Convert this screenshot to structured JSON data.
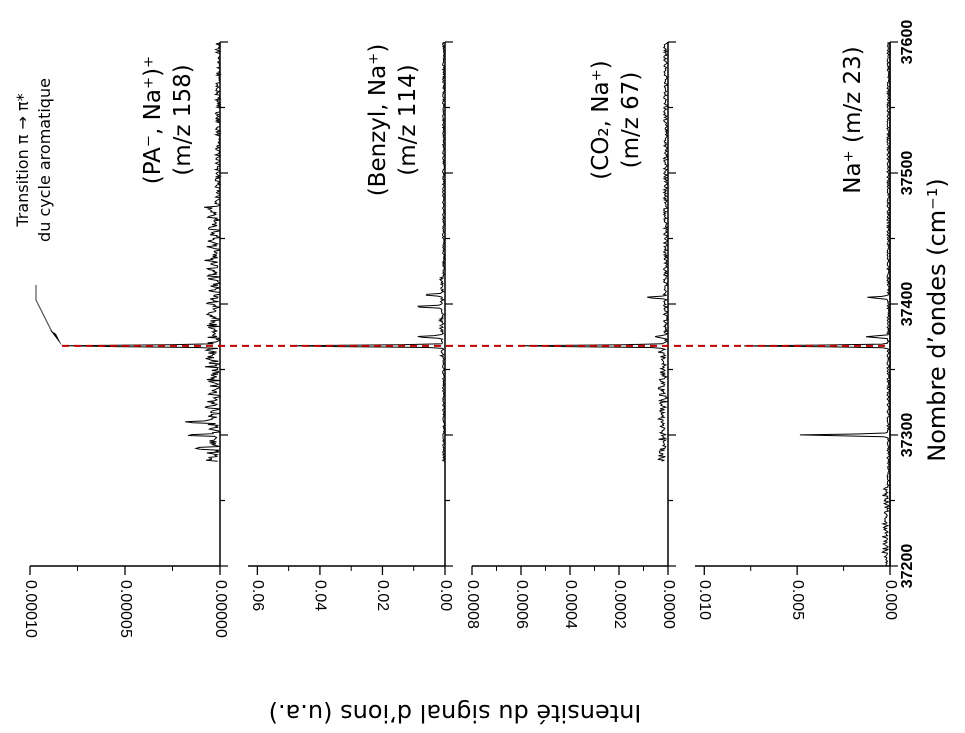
{
  "chart_data": {
    "type": "line",
    "orientation": "rotated-90",
    "xlabel": "Nombre d’ondes (cm⁻¹)",
    "ylabel": "Intensité du signal d’ions (u.a.)",
    "xlim": [
      37200,
      37600
    ],
    "x_ticks": [
      "37200",
      "37300",
      "37400",
      "37500",
      "37600"
    ],
    "reference_line": {
      "x": 37368,
      "color": "#c00000",
      "style": "dashed"
    },
    "annotation": {
      "line1": "Transition π → π*",
      "line2": "du cycle aromatique",
      "x": 37368
    },
    "panels": [
      {
        "title_line1": "(PA⁻, Na⁺)⁺",
        "title_line2": "(m/z 158)",
        "ylim": [
          0,
          0.0001
        ],
        "y_ticks": [
          0,
          5e-05,
          0.0001
        ],
        "y_tick_labels": [
          "0.00000",
          "0.00005",
          "0.00010"
        ],
        "x_range": [
          37280,
          37600
        ],
        "baseline": 5e-07,
        "noise": 2e-06,
        "peaks": [
          {
            "x": 37368,
            "y": 8.1e-05
          },
          {
            "x": 37300,
            "y": 1.4e-05
          },
          {
            "x": 37310,
            "y": 1.7e-05
          },
          {
            "x": 37290,
            "y": 1.2e-05
          }
        ],
        "noisy_band": [
          37280,
          37480
        ],
        "noisy_amp": 9e-06
      },
      {
        "title_line1": "(Benzyl, Na⁺)",
        "title_line2": "(m/z 114)",
        "ylim": [
          0,
          0.063
        ],
        "y_ticks": [
          0,
          0.02,
          0.04,
          0.06
        ],
        "y_tick_labels": [
          "0.00",
          "0.02",
          "0.04",
          "0.06"
        ],
        "x_range": [
          37280,
          37600
        ],
        "baseline": 0.0005,
        "noise": 0.0003,
        "peaks": [
          {
            "x": 37368,
            "y": 0.051
          },
          {
            "x": 37375,
            "y": 0.008
          },
          {
            "x": 37398,
            "y": 0.009
          },
          {
            "x": 37407,
            "y": 0.006
          }
        ],
        "noisy_band": [
          37360,
          37420
        ],
        "noisy_amp": 0.0015
      },
      {
        "title_line1": "(CO₂, Na⁺)",
        "title_line2": "(m/z 67)",
        "ylim": [
          0,
          0.0008
        ],
        "y_ticks": [
          0,
          0.0002,
          0.0004,
          0.0006,
          0.0008
        ],
        "y_tick_labels": [
          "0.0000",
          "0.0002",
          "0.0004",
          "0.0006",
          "0.0008"
        ],
        "x_range": [
          37280,
          37600
        ],
        "baseline": 1e-05,
        "noise": 8e-06,
        "peaks": [
          {
            "x": 37368,
            "y": 0.00061
          },
          {
            "x": 37375,
            "y": 5e-05
          },
          {
            "x": 37405,
            "y": 8e-05
          }
        ],
        "noisy_band": [
          37280,
          37370
        ],
        "noisy_amp": 4e-05
      },
      {
        "title_line1": "Na⁺ (m/z 23)",
        "title_line2": "",
        "ylim": [
          0,
          0.0105
        ],
        "y_ticks": [
          0,
          0.005,
          0.01
        ],
        "y_tick_labels": [
          "0.000",
          "0.005",
          "0.010"
        ],
        "x_range": [
          37200,
          37600
        ],
        "baseline": 0.0001,
        "noise": 6e-05,
        "peaks": [
          {
            "x": 37368,
            "y": 0.0078
          },
          {
            "x": 37300,
            "y": 0.0048
          },
          {
            "x": 37375,
            "y": 0.0012
          },
          {
            "x": 37405,
            "y": 0.0011
          }
        ],
        "noisy_band": [
          37200,
          37260
        ],
        "noisy_amp": 0.0004
      }
    ]
  }
}
